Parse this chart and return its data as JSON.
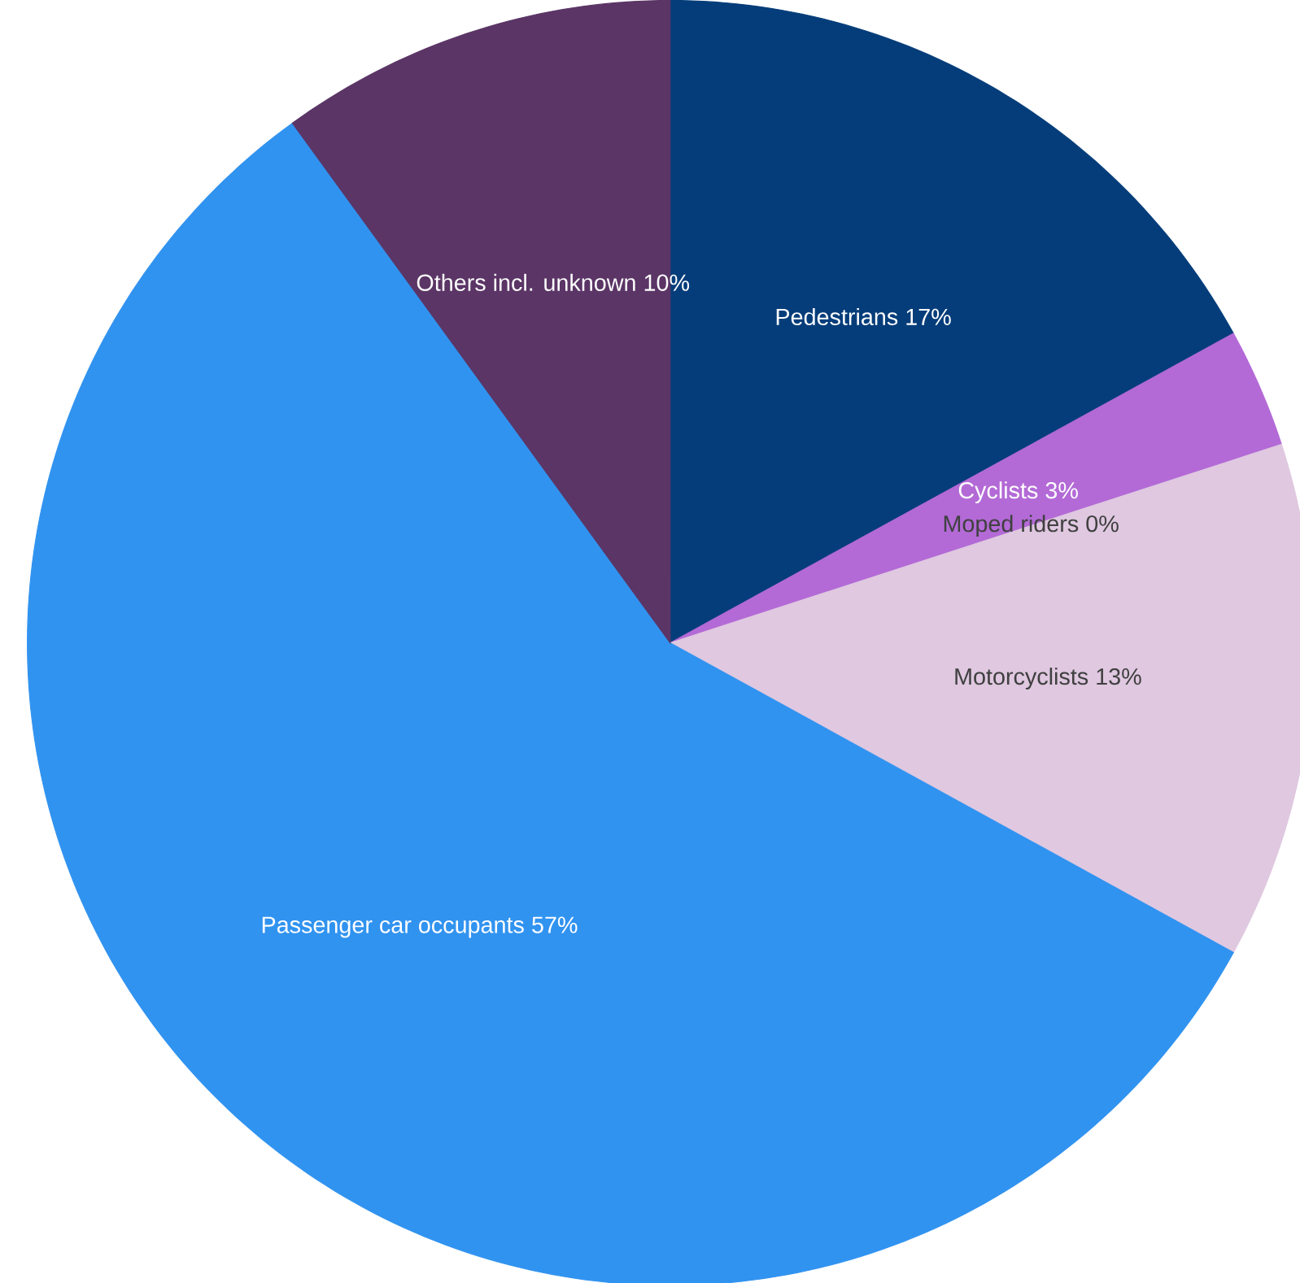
{
  "chart_data": {
    "type": "pie",
    "categories": [
      "Pedestrians",
      "Cyclists",
      "Moped riders",
      "Motorcyclists",
      "Passenger car occupants",
      "Others incl. unknown"
    ],
    "values": [
      17,
      3,
      0,
      13,
      57,
      10
    ],
    "value_labels": [
      "17%",
      "3%",
      "0%",
      "13%",
      "57%",
      "10%"
    ],
    "colors": [
      "#053d7a",
      "#b36ad6",
      "#2a5fa0",
      "#dfc8e0",
      "#3193f0",
      "#5b3566"
    ]
  }
}
